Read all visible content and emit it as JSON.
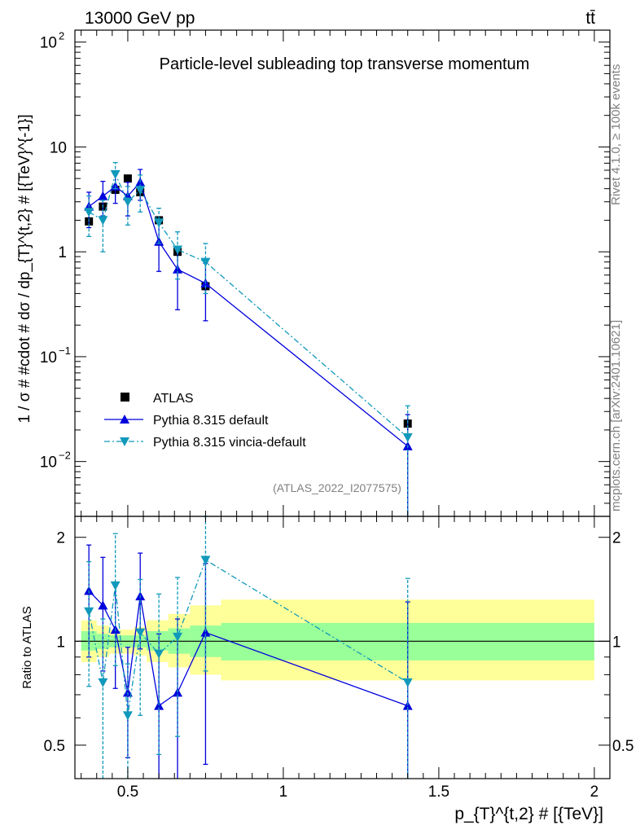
{
  "header": {
    "energy_label": "13000 GeV pp",
    "process_label": "tt̄"
  },
  "side_text": {
    "rivet": "Rivet 4.1.0, ≥ 100k events",
    "mcplots": "mcplots.cern.ch [arXiv:2401.10621]"
  },
  "chart_data": [
    {
      "type": "scatter",
      "panel": "main",
      "title": "Particle-level subleading top transverse momentum",
      "watermark": "(ATLAS_2022_I2077575)",
      "ylabel": "1 / σ # #cdot # dσ / dp_{T}^{t,2} # [{TeV}^{-1}]",
      "xlim": [
        0.33,
        2.05
      ],
      "ylim": [
        0.003,
        130
      ],
      "yscale": "log",
      "yticks": [
        {
          "v": 0.01,
          "base": "10",
          "exp": "−2"
        },
        {
          "v": 0.1,
          "base": "10",
          "exp": "−1"
        },
        {
          "v": 1,
          "base": "1",
          "exp": ""
        },
        {
          "v": 10,
          "base": "10",
          "exp": ""
        },
        {
          "v": 100,
          "base": "10",
          "exp": "2"
        }
      ],
      "legend": [
        {
          "name": "ATLAS",
          "marker": "square",
          "color": "#000000"
        },
        {
          "name": "Pythia 8.315 default",
          "marker": "triangle-up",
          "color": "#0000dd"
        },
        {
          "name": "Pythia 8.315 vincia-default",
          "marker": "triangle-down",
          "color": "#1199bb"
        }
      ],
      "series": [
        {
          "name": "ATLAS",
          "x": [
            0.375,
            0.42,
            0.46,
            0.5,
            0.54,
            0.6,
            0.66,
            0.75,
            1.4
          ],
          "y": [
            1.95,
            2.7,
            3.9,
            5.0,
            3.7,
            2.0,
            1.0,
            0.47,
            0.023
          ],
          "yerr_lo": [
            0.2,
            0.25,
            0.35,
            0.4,
            0.35,
            0.2,
            0.12,
            0.06,
            0.004
          ],
          "yerr_hi": [
            0.2,
            0.25,
            0.35,
            0.4,
            0.35,
            0.2,
            0.12,
            0.06,
            0.004
          ]
        },
        {
          "name": "Pythia 8.315 default",
          "x": [
            0.375,
            0.42,
            0.46,
            0.5,
            0.54,
            0.6,
            0.66,
            0.75,
            1.4
          ],
          "y": [
            2.7,
            3.4,
            4.2,
            3.4,
            4.6,
            1.25,
            0.68,
            0.5,
            0.014
          ],
          "yerr_lo": [
            1.0,
            1.2,
            1.3,
            1.2,
            1.5,
            0.6,
            0.4,
            0.28,
            0.014
          ],
          "yerr_hi": [
            1.0,
            1.3,
            1.4,
            1.2,
            1.5,
            0.7,
            0.45,
            0.28,
            0.014
          ]
        },
        {
          "name": "Pythia 8.315 vincia-default",
          "x": [
            0.375,
            0.42,
            0.46,
            0.5,
            0.54,
            0.6,
            0.66,
            0.75,
            1.4
          ],
          "y": [
            2.4,
            2.0,
            5.5,
            3.0,
            3.9,
            1.9,
            1.05,
            0.8,
            0.017
          ],
          "yerr_lo": [
            1.0,
            1.0,
            1.5,
            1.2,
            1.5,
            0.7,
            0.5,
            0.4,
            0.017
          ],
          "yerr_hi": [
            1.0,
            1.1,
            1.6,
            1.2,
            1.5,
            0.7,
            0.5,
            0.4,
            0.017
          ]
        }
      ]
    },
    {
      "type": "scatter",
      "panel": "ratio",
      "ylabel": "Ratio to ATLAS",
      "xlabel": "p_{T}^{t,2} # [{TeV}]",
      "xlim": [
        0.33,
        2.05
      ],
      "ylim": [
        0.4,
        2.3
      ],
      "yscale": "log",
      "yticks": [
        0.5,
        1,
        2
      ],
      "ytick_labels": [
        "0.5",
        "1",
        "2"
      ],
      "xticks": [
        0.5,
        1,
        1.5,
        2
      ],
      "xtick_labels": [
        "0.5",
        "1",
        "1.5",
        "2"
      ],
      "bands": {
        "edges": [
          0.35,
          0.4,
          0.44,
          0.48,
          0.52,
          0.56,
          0.63,
          0.7,
          0.8,
          2.0
        ],
        "inner_lo": [
          0.94,
          0.95,
          0.96,
          0.96,
          0.96,
          0.94,
          0.92,
          0.9,
          0.88
        ],
        "inner_hi": [
          1.07,
          1.05,
          1.04,
          1.04,
          1.04,
          1.07,
          1.09,
          1.11,
          1.13
        ],
        "outer_lo": [
          0.87,
          0.9,
          0.92,
          0.92,
          0.91,
          0.87,
          0.84,
          0.8,
          0.77
        ],
        "outer_hi": [
          1.15,
          1.11,
          1.08,
          1.08,
          1.1,
          1.15,
          1.2,
          1.27,
          1.32
        ],
        "inner_color": "#99ff99",
        "outer_color": "#ffff99"
      },
      "series": [
        {
          "name": "Pythia 8.315 default",
          "x": [
            0.375,
            0.42,
            0.46,
            0.5,
            0.54,
            0.6,
            0.66,
            0.75,
            1.4
          ],
          "y": [
            1.4,
            1.27,
            1.08,
            0.71,
            1.35,
            0.65,
            0.71,
            1.06,
            0.65
          ],
          "yerr_lo": [
            0.5,
            0.45,
            0.35,
            0.25,
            0.4,
            0.35,
            0.4,
            0.62,
            0.65
          ],
          "yerr_hi": [
            0.5,
            0.48,
            0.38,
            0.25,
            0.45,
            0.4,
            0.45,
            0.62,
            0.65
          ]
        },
        {
          "name": "Pythia 8.315 vincia-default",
          "x": [
            0.375,
            0.42,
            0.46,
            0.5,
            0.54,
            0.6,
            0.66,
            0.75,
            1.4
          ],
          "y": [
            1.22,
            0.76,
            1.45,
            0.61,
            1.06,
            0.92,
            1.03,
            1.72,
            0.76
          ],
          "yerr_lo": [
            0.48,
            0.36,
            0.6,
            0.25,
            0.45,
            0.45,
            0.5,
            0.9,
            0.76
          ],
          "yerr_hi": [
            0.48,
            0.4,
            0.6,
            0.25,
            0.45,
            0.45,
            0.5,
            0.9,
            0.76
          ]
        }
      ]
    }
  ]
}
